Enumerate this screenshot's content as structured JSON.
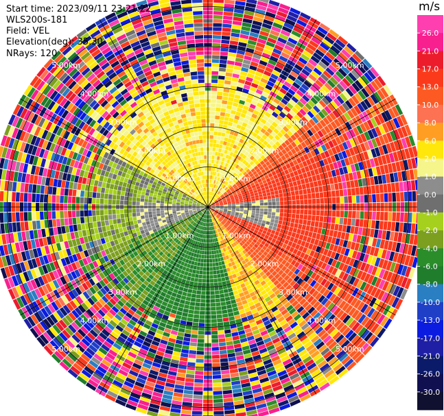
{
  "header": {
    "start_time": "Start time: 2023/09/11 23:21:22",
    "instrument": "WLS200s-181",
    "field": "Field: VEL",
    "elevation": "Elevation(deg): 35.30",
    "nrays": "NRays: 120"
  },
  "colorbar": {
    "unit": "m/s",
    "ticks": [
      "26.0",
      "21.0",
      "17.0",
      "13.0",
      "10.0",
      "8.0",
      "6.0",
      "2.0",
      "1.0",
      "0.0",
      "-1.0",
      "-2.0",
      "-4.0",
      "-6.0",
      "-8.0",
      "-10.0",
      "-13.0",
      "-17.0",
      "-21.0",
      "-26.0",
      "-30.0"
    ],
    "colors": [
      "#ff3eaf",
      "#f81f8e",
      "#ec1c2c",
      "#fb3a1c",
      "#fd5a23",
      "#fd7252",
      "#ff9e23",
      "#ffe70b",
      "#f6f58b",
      "#8d8d8d",
      "#6f6f6f",
      "#a6d01e",
      "#7c9f1f",
      "#2a8d2a",
      "#207d2c",
      "#2a7ec2",
      "#1f3fc7",
      "#0b1bdf",
      "#1f1fa6",
      "#0c1a6a",
      "#101050",
      "#101030"
    ]
  },
  "chart_data": {
    "type": "heatmap",
    "projection": "polar-ppi",
    "field": "VEL",
    "units": "m/s",
    "nrays": 120,
    "range_rings_km": [
      1.0,
      2.0,
      3.0,
      4.0,
      5.0
    ],
    "range_ring_labels": [
      "1.00km",
      "2.00km",
      "3.00km",
      "4.00km",
      "5.00km"
    ],
    "max_range_km": 5.4,
    "azimuth_spokes_deg": [
      0,
      30,
      60,
      90,
      120,
      150,
      180,
      210,
      240,
      270,
      300,
      330
    ],
    "value_range": [
      -30.0,
      30.0
    ],
    "dominant_velocity_by_sector": [
      {
        "azimuth": "north (0°)",
        "range_km": [
          0.5,
          3.0
        ],
        "velocity": 2.0
      },
      {
        "azimuth": "east (60°-120°)",
        "range_km": [
          3.0,
          5.0
        ],
        "velocity": 13.0
      },
      {
        "azimuth": "south (150°-210°)",
        "range_km": [
          0.3,
          3.0
        ],
        "velocity": -6.0
      },
      {
        "azimuth": "west (240°-300°)",
        "range_km": [
          1.0,
          3.0
        ],
        "velocity": -2.0
      },
      {
        "azimuth": "south-east (120°-160°)",
        "range_km": [
          3.0,
          5.0
        ],
        "velocity": 6.0
      },
      {
        "azimuth": "all",
        "range_km": [
          3.5,
          5.4
        ],
        "velocity": "noise"
      }
    ]
  }
}
